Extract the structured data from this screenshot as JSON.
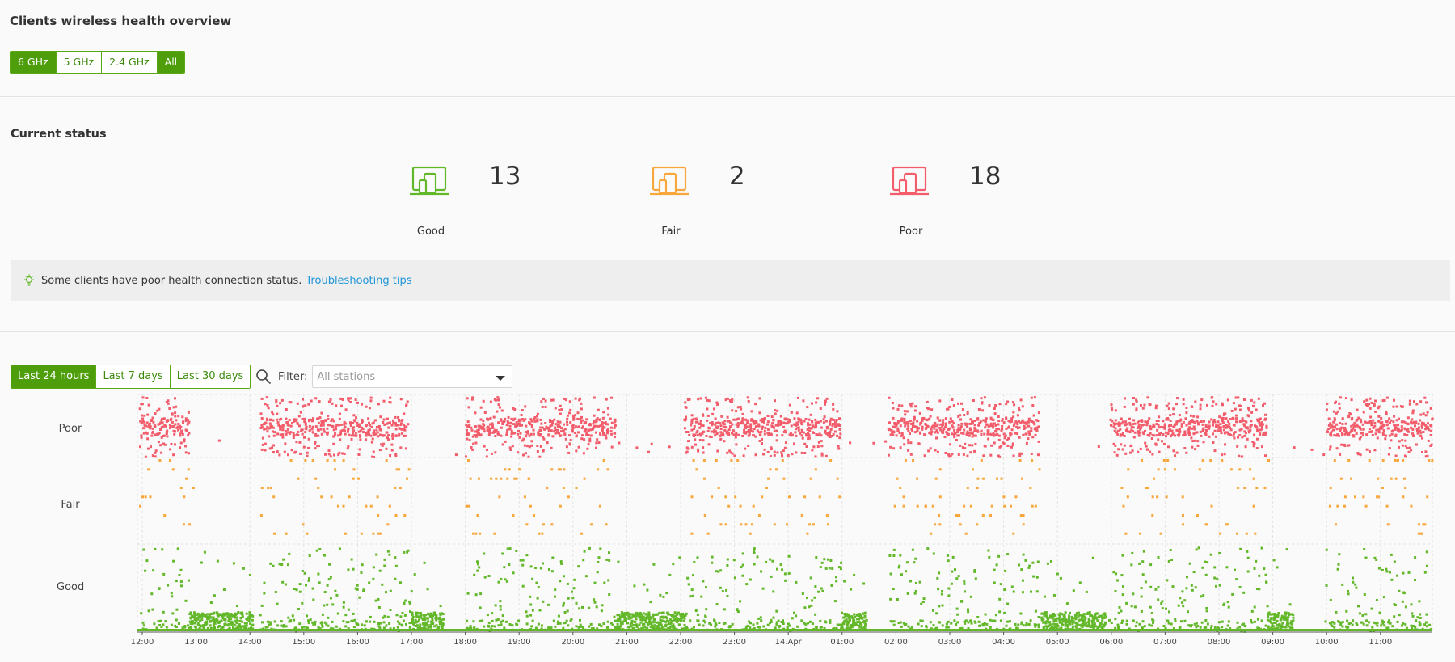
{
  "header": {
    "title": "Clients wireless health overview"
  },
  "band_tabs": [
    {
      "label": "6 GHz",
      "active": true
    },
    {
      "label": "5 GHz",
      "active": false
    },
    {
      "label": "2.4 GHz",
      "active": false
    },
    {
      "label": "All",
      "active": true
    }
  ],
  "current_status": {
    "title": "Current status",
    "items": [
      {
        "label": "Good",
        "count": "13",
        "color": "#63b82a",
        "icon": "devices-icon"
      },
      {
        "label": "Fair",
        "count": "2",
        "color": "#f7a73b",
        "icon": "devices-icon"
      },
      {
        "label": "Poor",
        "count": "18",
        "color": "#f25c6b",
        "icon": "devices-icon"
      }
    ]
  },
  "notice": {
    "text": "Some clients have poor health connection status.",
    "link": "Troubleshooting tips",
    "icon": "lightbulb-icon"
  },
  "range_tabs": [
    {
      "label": "Last 24 hours",
      "active": true
    },
    {
      "label": "Last 7 days",
      "active": false
    },
    {
      "label": "Last 30 days",
      "active": false
    }
  ],
  "filter": {
    "label": "Filter:",
    "placeholder": "All stations",
    "icon": "search-icon"
  },
  "chart_data": {
    "type": "scatter",
    "rows": [
      "Poor",
      "Fair",
      "Good"
    ],
    "colors": {
      "Poor": "#f25c6b",
      "Fair": "#f7a73b",
      "Good": "#63b82a"
    },
    "x_ticks": [
      "12:00",
      "13:00",
      "14:00",
      "15:00",
      "16:00",
      "17:00",
      "18:00",
      "19:00",
      "20:00",
      "21:00",
      "22:00",
      "23:00",
      "14.Apr",
      "01:00",
      "02:00",
      "03:00",
      "04:00",
      "05:00",
      "06:00",
      "07:00",
      "08:00",
      "09:00",
      "10:00",
      "11:00"
    ],
    "active_periods": [
      [
        0,
        0.9
      ],
      [
        2.2,
        5.0
      ],
      [
        6.0,
        8.8
      ],
      [
        10.1,
        13.0
      ],
      [
        13.9,
        16.7
      ],
      [
        18.0,
        20.9
      ],
      [
        22.0,
        24.0
      ]
    ],
    "good_clusters": [
      [
        0.9,
        2.1
      ],
      [
        5.0,
        5.6
      ],
      [
        8.8,
        10.1
      ],
      [
        13.0,
        13.5
      ],
      [
        16.7,
        17.9
      ],
      [
        20.9,
        21.4
      ]
    ],
    "grid": true
  }
}
